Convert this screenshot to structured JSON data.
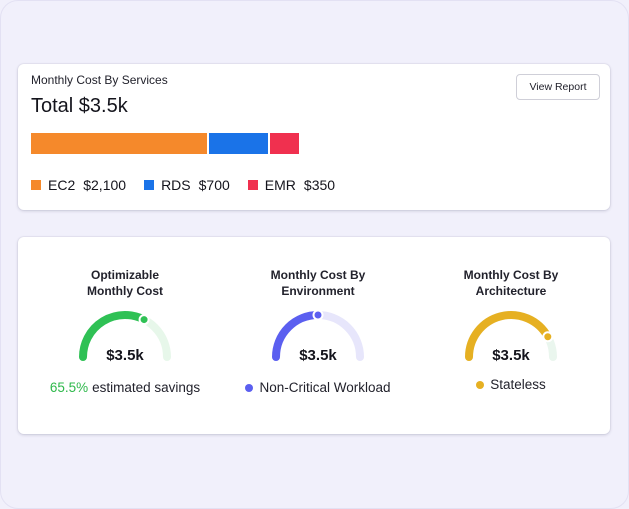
{
  "services_card": {
    "title": "Monthly Cost By Services",
    "total": "Total $3.5k",
    "view_report": "View Report",
    "segments": [
      {
        "name": "EC2",
        "value": "$2,100",
        "amount": 2100,
        "color": "#f5892b"
      },
      {
        "name": "RDS",
        "value": "$700",
        "amount": 700,
        "color": "#1a73e8"
      },
      {
        "name": "EMR",
        "value": "$350",
        "amount": 350,
        "color": "#f0304f"
      }
    ]
  },
  "gauges": [
    {
      "title_line1": "Optimizable",
      "title_line2": "Monthly Cost",
      "value": "$3.5k",
      "fraction": 0.65,
      "color": "#2fc155",
      "track": "#e7f7ea",
      "pct": "65.5%",
      "footer": "estimated savings"
    },
    {
      "title_line1": "Monthly Cost By",
      "title_line2": "Environment",
      "value": "$3.5k",
      "fraction": 0.5,
      "color": "#5b5ff0",
      "track": "#e7e6fb",
      "footer": "Non-Critical Workload"
    },
    {
      "title_line1": "Monthly Cost By",
      "title_line2": "Architecture",
      "value": "$3.5k",
      "fraction": 0.84,
      "color": "#e6b022",
      "track": "#eaf6ee",
      "footer": "Stateless"
    }
  ]
}
